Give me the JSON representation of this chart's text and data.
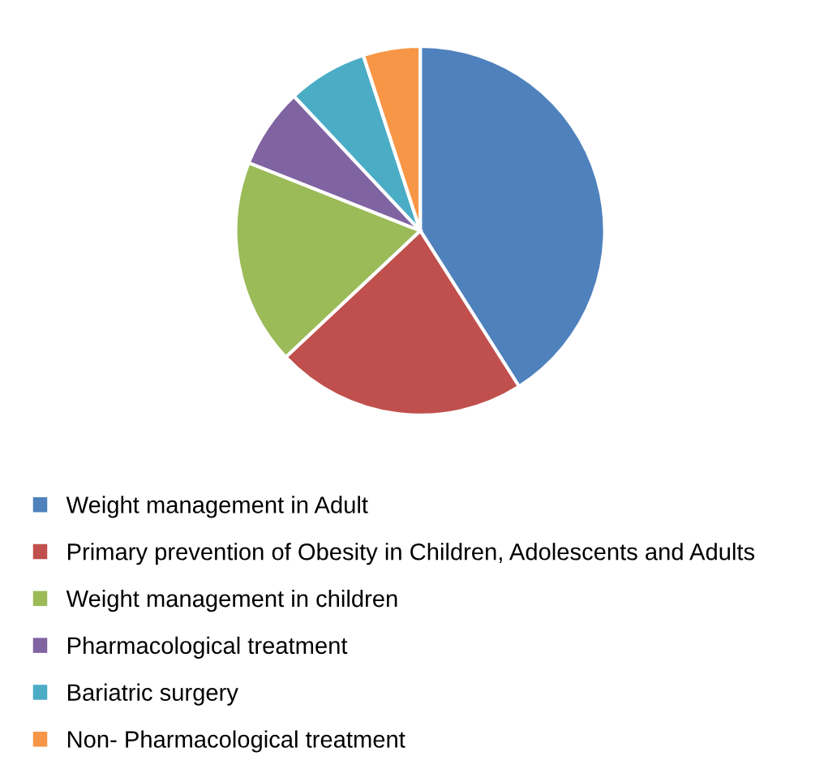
{
  "chart_data": {
    "type": "pie",
    "categories": [
      "Weight management in Adult",
      "Primary prevention of Obesity in Children, Adolescents and Adults",
      "Weight management in children",
      "Pharmacological treatment",
      "Bariatric surgery",
      "Non- Pharmacological treatment"
    ],
    "values": [
      41,
      22,
      18,
      7,
      7,
      5
    ],
    "colors": [
      "#4f81bd",
      "#c0504d",
      "#9bbb59",
      "#8064a2",
      "#4bacc6",
      "#f79646"
    ],
    "legend": "bottom"
  }
}
